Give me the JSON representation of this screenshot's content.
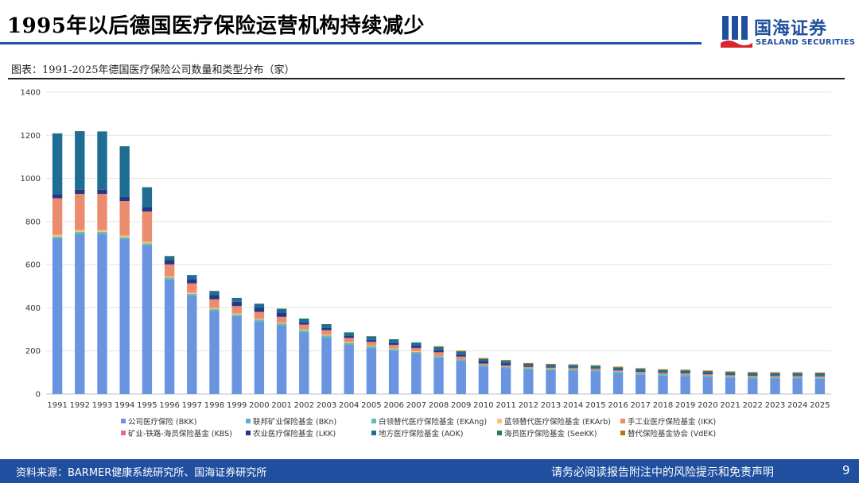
{
  "header": {
    "title": "1995年以后德国医疗保险运营机构持续减少",
    "logo_cn": "国海证券",
    "logo_en": "SEALAND SECURITIES"
  },
  "caption": "图表：1991-2025年德国医疗保险公司数量和类型分布（家）",
  "footer": {
    "source": "资料来源：BARMER健康系统研究所、国海证券研究所",
    "notice": "请务必阅读报告附注中的风险提示和免责声明",
    "page": "9"
  },
  "colors": {
    "accent": "#1f4f9e",
    "BKK": "#6a94e0",
    "BKn": "#5ab0d6",
    "EKAng": "#5cc2a6",
    "EKArb": "#f4c47a",
    "IKK": "#ec8c6e",
    "KBS": "#e86a88",
    "LKK": "#27368a",
    "AOK": "#1e6e94",
    "SeeKK": "#2b7a52",
    "VdEK": "#b5780c"
  },
  "chart_data": {
    "type": "bar",
    "stacked": true,
    "title": "",
    "xlabel": "",
    "ylabel": "",
    "ylim": [
      0,
      1400
    ],
    "yticks": [
      0,
      200,
      400,
      600,
      800,
      1000,
      1200,
      1400
    ],
    "grid": true,
    "legend_position": "bottom",
    "categories": [
      "1991",
      "1992",
      "1993",
      "1994",
      "1995",
      "1996",
      "1997",
      "1998",
      "1999",
      "2000",
      "2001",
      "2002",
      "2003",
      "2004",
      "2005",
      "2006",
      "2007",
      "2008",
      "2009",
      "2010",
      "2011",
      "2012",
      "2013",
      "2014",
      "2015",
      "2016",
      "2017",
      "2018",
      "2019",
      "2020",
      "2021",
      "2022",
      "2023",
      "2024",
      "2025"
    ],
    "series": [
      {
        "key": "BKK",
        "name": "公司医疗保险 (BKK)",
        "values": [
          722,
          744,
          744,
          719,
          690,
          532,
          457,
          386,
          361,
          337,
          318,
          287,
          263,
          229,
          213,
          201,
          189,
          168,
          153,
          128,
          120,
          115,
          111,
          109,
          105,
          98,
          91,
          86,
          84,
          80,
          76,
          73,
          72,
          72,
          71
        ]
      },
      {
        "key": "BKn",
        "name": "联邦矿业保险基金 (BKn)",
        "values": [
          1,
          1,
          1,
          1,
          1,
          1,
          1,
          1,
          1,
          1,
          1,
          1,
          1,
          1,
          1,
          1,
          0,
          0,
          0,
          0,
          0,
          0,
          0,
          0,
          0,
          0,
          0,
          0,
          0,
          0,
          0,
          0,
          0,
          0,
          0
        ]
      },
      {
        "key": "EKAng",
        "name": "白领替代医疗保险基金 (EKAng)",
        "values": [
          7,
          7,
          7,
          7,
          7,
          7,
          7,
          7,
          7,
          7,
          7,
          7,
          7,
          7,
          7,
          7,
          7,
          7,
          7,
          6,
          6,
          6,
          6,
          6,
          6,
          6,
          6,
          6,
          6,
          6,
          6,
          6,
          6,
          6,
          6
        ]
      },
      {
        "key": "EKArb",
        "name": "蓝领替代医疗保险基金 (EKArb)",
        "values": [
          8,
          8,
          8,
          8,
          8,
          5,
          5,
          5,
          5,
          4,
          4,
          4,
          4,
          4,
          3,
          3,
          3,
          2,
          0,
          0,
          0,
          0,
          0,
          0,
          0,
          0,
          0,
          0,
          0,
          0,
          0,
          0,
          0,
          0,
          0
        ]
      },
      {
        "key": "IKK",
        "name": "手工业医疗保险基金 (IKK)",
        "values": [
          170,
          168,
          168,
          160,
          140,
          56,
          43,
          40,
          34,
          32,
          28,
          23,
          21,
          19,
          18,
          16,
          14,
          16,
          13,
          7,
          6,
          6,
          6,
          6,
          6,
          6,
          6,
          6,
          6,
          6,
          6,
          6,
          6,
          6,
          6
        ]
      },
      {
        "key": "KBS",
        "name": "矿业-铁路-海员保险基金 (KBS)",
        "values": [
          0,
          0,
          0,
          0,
          0,
          0,
          0,
          0,
          0,
          0,
          0,
          0,
          0,
          0,
          0,
          0,
          1,
          1,
          1,
          1,
          1,
          1,
          1,
          1,
          1,
          1,
          1,
          1,
          1,
          1,
          1,
          1,
          1,
          1,
          1
        ]
      },
      {
        "key": "LKK",
        "name": "农业医疗保险基金 (LKK)",
        "values": [
          19,
          20,
          20,
          20,
          20,
          20,
          20,
          20,
          20,
          20,
          20,
          10,
          10,
          9,
          9,
          9,
          9,
          9,
          9,
          9,
          9,
          1,
          1,
          1,
          1,
          1,
          1,
          1,
          1,
          1,
          1,
          1,
          1,
          1,
          1
        ]
      },
      {
        "key": "AOK",
        "name": "地方医疗保险基金 (AOK)",
        "values": [
          281,
          270,
          269,
          233,
          92,
          18,
          18,
          18,
          17,
          17,
          17,
          17,
          17,
          16,
          16,
          16,
          16,
          15,
          14,
          12,
          12,
          11,
          11,
          11,
          11,
          11,
          11,
          11,
          11,
          11,
          11,
          11,
          11,
          11,
          11
        ]
      },
      {
        "key": "SeeKK",
        "name": "海员医疗保险基金 (SeeKK)",
        "values": [
          1,
          1,
          1,
          1,
          1,
          1,
          1,
          1,
          1,
          1,
          1,
          1,
          1,
          1,
          1,
          1,
          0,
          0,
          0,
          0,
          0,
          0,
          0,
          0,
          0,
          0,
          0,
          0,
          0,
          0,
          0,
          0,
          0,
          0,
          0
        ]
      },
      {
        "key": "VdEK",
        "name": "替代保险基金协会 (VdEK)",
        "values": [
          0,
          0,
          0,
          0,
          0,
          0,
          0,
          0,
          0,
          0,
          0,
          0,
          0,
          0,
          0,
          0,
          0,
          4,
          4,
          4,
          4,
          4,
          4,
          4,
          4,
          4,
          4,
          4,
          4,
          4,
          4,
          4,
          4,
          4,
          4
        ]
      }
    ]
  }
}
